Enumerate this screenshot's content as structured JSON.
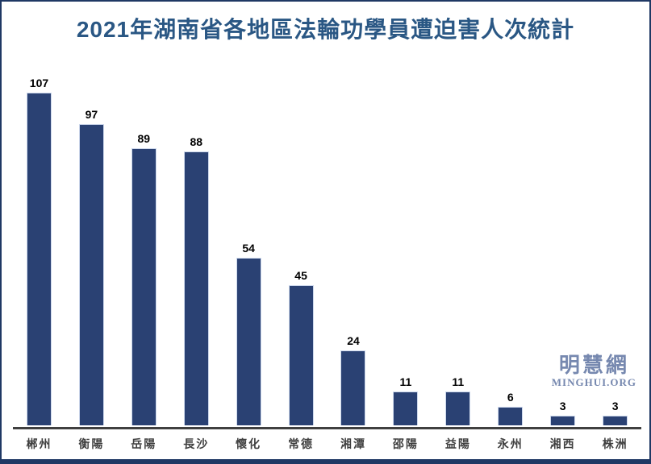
{
  "title": "2021年湖南省各地區法輪功學員遭迫害人次統計",
  "watermark": {
    "cn": "明慧網",
    "en": "MINGHUI.ORG"
  },
  "colors": {
    "bar": "#2A4173",
    "bar_edge": "#CDD8EC",
    "frame": "#1F3864",
    "title_text": "#2A5784",
    "axis_line": "#404040",
    "value_label": "#000000",
    "category_label": "#3F3F3F",
    "watermark_text": "#7688AF"
  },
  "chart_data": {
    "type": "bar",
    "title": "2021年湖南省各地區法輪功學員遭迫害人次統計",
    "categories": [
      "郴州",
      "衡陽",
      "岳陽",
      "長沙",
      "懷化",
      "常德",
      "湘潭",
      "邵陽",
      "益陽",
      "永州",
      "湘西",
      "株洲"
    ],
    "values": [
      107,
      97,
      89,
      88,
      54,
      45,
      24,
      11,
      11,
      6,
      3,
      3
    ],
    "xlabel": "",
    "ylabel": "",
    "ylim": [
      0,
      112
    ],
    "grid": false,
    "legend": false,
    "data_labels": true,
    "bar_color": "#2A4173"
  }
}
